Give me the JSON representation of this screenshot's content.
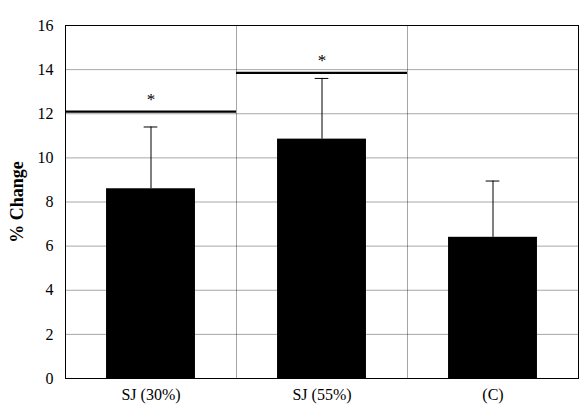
{
  "chart_data": {
    "type": "bar",
    "ylabel": "% Change",
    "categories": [
      "SJ (30%)",
      "SJ (55%)",
      "(C)"
    ],
    "values": [
      8.6,
      10.85,
      6.4
    ],
    "errors": [
      2.8,
      2.75,
      2.55
    ],
    "color": "#000000",
    "ylim": [
      0,
      16
    ],
    "yticks": [
      0,
      2,
      4,
      6,
      8,
      10,
      12,
      14,
      16
    ],
    "grid": true,
    "annotations": [
      {
        "text": "*",
        "y": 12.1,
        "category": "SJ (30%)"
      },
      {
        "text": "*",
        "y": 13.85,
        "category": "SJ (55%)"
      }
    ]
  }
}
